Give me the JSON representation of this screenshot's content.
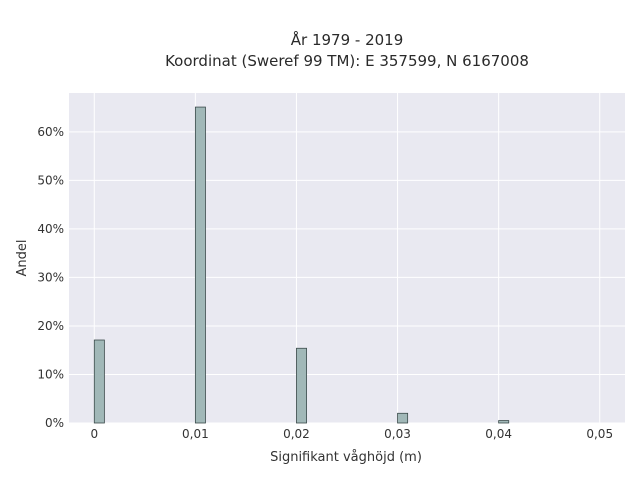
{
  "chart_data": {
    "type": "bar",
    "title_lines": [
      "År 1979 - 2019",
      "Koordinat (Sweref 99 TM): E 357599, N 6167008"
    ],
    "xlabel": "Signifikant våghöjd (m)",
    "ylabel": "Andel",
    "x": [
      0,
      0.01,
      0.02,
      0.03,
      0.04
    ],
    "values": [
      17.1,
      65.1,
      15.4,
      2.0,
      0.5
    ],
    "bar_width": 0.001,
    "xlim": [
      -0.0025,
      0.0525
    ],
    "ylim": [
      0,
      68
    ],
    "x_ticks": [
      0,
      0.01,
      0.02,
      0.03,
      0.04,
      0.05
    ],
    "x_tick_labels": [
      "0",
      "0,01",
      "0,02",
      "0,03",
      "0,04",
      "0,05"
    ],
    "y_ticks": [
      0,
      10,
      20,
      30,
      40,
      50,
      60
    ],
    "y_tick_labels": [
      "0%",
      "10%",
      "20%",
      "30%",
      "40%",
      "50%",
      "60%"
    ],
    "grid": true,
    "colors": {
      "plot_bg": "#e9e9f1",
      "bar_fill": "#a1b8b8",
      "bar_stroke": "#3a4a4a",
      "grid": "#ffffff"
    }
  }
}
